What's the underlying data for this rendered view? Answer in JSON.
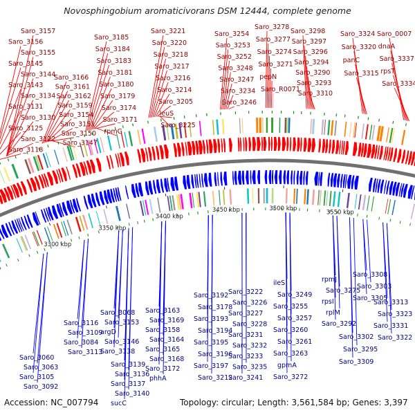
{
  "title": "Novosphingobium aromaticivorans DSM 12444, complete genome",
  "footer": {
    "accession": "Accession: NC_007794",
    "topology": "Topology: circular; Length: 3,561,584 bp; Genes: 3,397"
  },
  "colors": {
    "forward": "#ff0000",
    "reverse": "#0000ff",
    "rna": "#ff88cc",
    "backbone": "#707070",
    "tick": "#008800"
  },
  "ticks": [
    "3300 kbp",
    "3350 kbp",
    "3400 kbp",
    "3450 kbp",
    "3500 kbp",
    "3550 kbp"
  ],
  "forward_labels": [
    "Saro_3157",
    "Saro_3156",
    "Saro_3155",
    "Saro_3145",
    "Saro_3144",
    "Saro_3143",
    "Saro_3134",
    "Saro_3131",
    "Saro_3130",
    "Saro_3125",
    "Saro_3122",
    "Saro_3118",
    "Saro_3166",
    "Saro_3161",
    "Saro_3162",
    "Saro_3159",
    "Saro_3154",
    "Saro_3151",
    "Saro_3150",
    "Saro_3147",
    "Saro_3185",
    "Saro_3184",
    "Saro_3183",
    "Saro_3181",
    "Saro_3180",
    "Saro_3179",
    "Saro_3174",
    "Saro_3171",
    "rpmG",
    "Saro_3221",
    "Saro_3220",
    "Saro_3218",
    "Saro_3217",
    "Saro_3216",
    "Saro_3214",
    "Saro_3205",
    "leuS",
    "Saro_3225",
    "Saro_3254",
    "Saro_3253",
    "Saro_3252",
    "Saro_3248",
    "Saro_3247",
    "Saro_3234",
    "Saro_3246",
    "Saro_3278",
    "Saro_3277",
    "Saro_3274",
    "Saro_3271",
    "pepN",
    "Saro_R0071",
    "Saro_3298",
    "Saro_3297",
    "Saro_3296",
    "Saro_3294",
    "Saro_3290",
    "Saro_3293",
    "Saro_3310",
    "Saro_3324",
    "Saro_3320",
    "panC",
    "Saro_3315",
    "Saro_0007",
    "dnaA",
    "Saro_3337",
    "rpsT",
    "Saro_3334"
  ],
  "reverse_labels": [
    "Saro_3116",
    "Saro_3109",
    "Saro_3084",
    "Saro_3113",
    "Saro_3060",
    "Saro_3063",
    "Saro_3105",
    "Saro_3092",
    "Saro_3068",
    "Saro_3153",
    "argD",
    "Saro_3146",
    "Saro_3138",
    "Saro_3139",
    "Saro_3136",
    "Saro_3137",
    "Saro_3140",
    "sucC",
    "Saro_3163",
    "Saro_3169",
    "Saro_3158",
    "Saro_3164",
    "Saro_3165",
    "Saro_3168",
    "Saro_3172",
    "phhA",
    "Saro_3192",
    "Saro_3178",
    "Saro_3193",
    "Saro_3194",
    "Saro_3195",
    "Saro_3196",
    "Saro_3197",
    "Saro_3212",
    "Saro_3222",
    "Saro_3226",
    "Saro_3227",
    "Saro_3228",
    "Saro_3231",
    "Saro_3232",
    "Saro_3233",
    "Saro_3235",
    "Saro_3241",
    "ileS",
    "Saro_3249",
    "Saro_3255",
    "Saro_3257",
    "Saro_3260",
    "Saro_3261",
    "Saro_3263",
    "gpmA",
    "Saro_3272",
    "rpmJ",
    "Saro_3275",
    "rpsI",
    "rplM",
    "Saro_3292",
    "Saro_3302",
    "Saro_3295",
    "Saro_3309",
    "Saro_3308",
    "Saro_3303",
    "Saro_3305",
    "Saro_3313",
    "Saro_3323",
    "Saro_3331",
    "Saro_3322",
    "Saro_0003",
    "Saro_0008",
    "Saro_0009",
    "Saro_3312",
    "Saro_3332"
  ]
}
